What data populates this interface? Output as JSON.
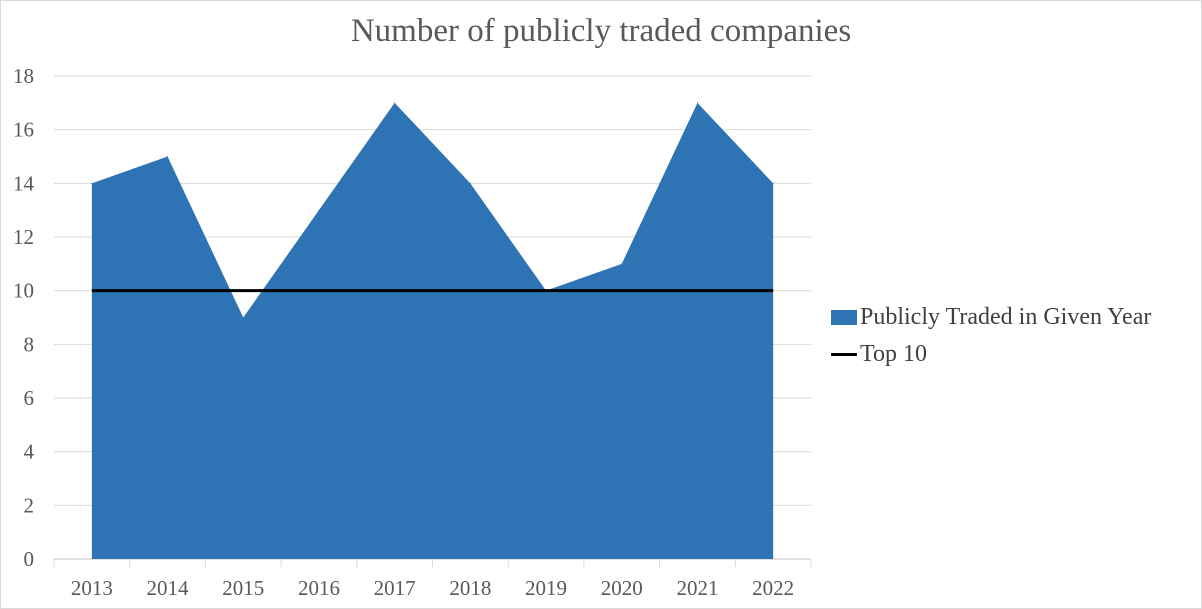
{
  "chart_data": {
    "type": "area",
    "title": "Number of publicly traded companies",
    "categories": [
      "2013",
      "2014",
      "2015",
      "2016",
      "2017",
      "2018",
      "2019",
      "2020",
      "2021",
      "2022"
    ],
    "series": [
      {
        "name": "Publicly Traded in Given Year",
        "kind": "area",
        "color": "#2e74b5",
        "values": [
          14,
          15,
          9,
          13,
          17,
          14,
          10,
          11,
          17,
          14
        ]
      },
      {
        "name": "Top 10",
        "kind": "line",
        "color": "#000000",
        "values": [
          10,
          10,
          10,
          10,
          10,
          10,
          10,
          10,
          10,
          10
        ]
      }
    ],
    "yticks": [
      "0",
      "2",
      "4",
      "6",
      "8",
      "10",
      "12",
      "14",
      "16",
      "18"
    ],
    "ylim": [
      0,
      18
    ],
    "grid": true,
    "legend_position": "right"
  }
}
